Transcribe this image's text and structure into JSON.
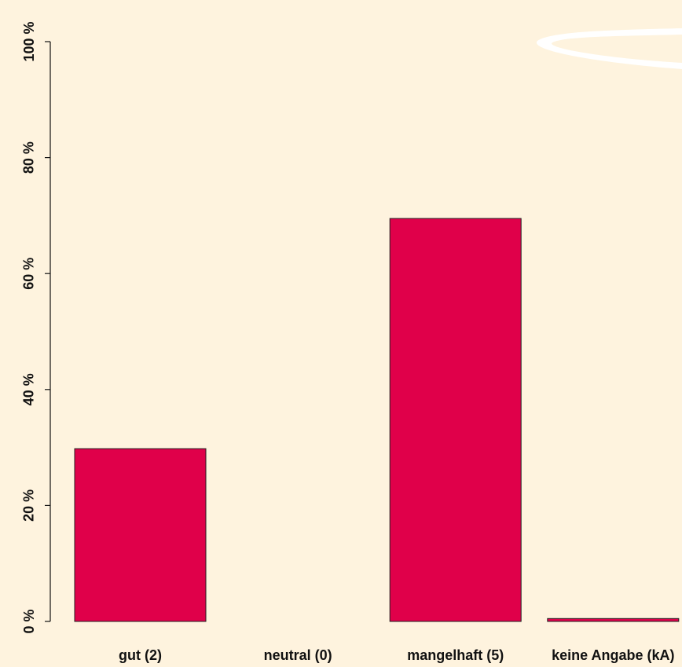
{
  "chart_data": {
    "type": "bar",
    "categories": [
      "gut (2)",
      "neutral (0)",
      "mangelhaft (5)",
      "keine Angabe (kA)"
    ],
    "values": [
      29.8,
      0,
      69.5,
      0.5
    ],
    "color": "#e0004a",
    "ylim": [
      0,
      100
    ],
    "yticks": [
      {
        "value": 0,
        "label": "0 %"
      },
      {
        "value": 20,
        "label": "20 %"
      },
      {
        "value": 40,
        "label": "40 %"
      },
      {
        "value": 60,
        "label": "60 %"
      },
      {
        "value": 80,
        "label": "80 %"
      },
      {
        "value": 100,
        "label": "100 %"
      }
    ]
  }
}
